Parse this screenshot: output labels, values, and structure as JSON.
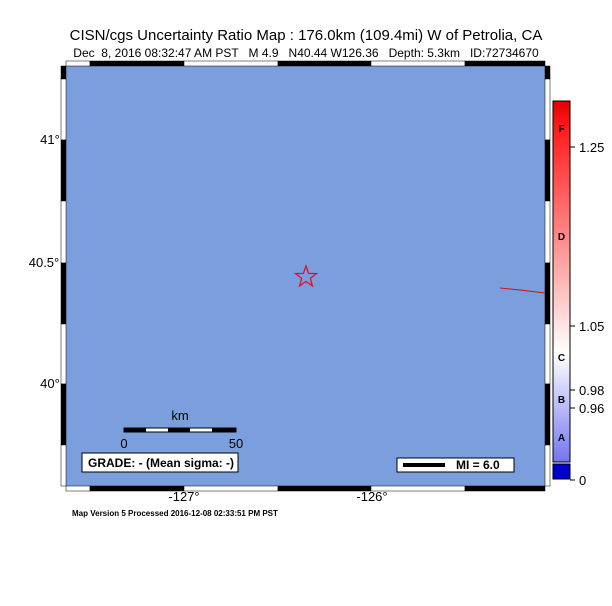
{
  "header": {
    "title": "CISN/cgs Uncertainty Ratio Map : 176.0km (109.4mi) W of Petrolia, CA",
    "subtitle": "Dec  8, 2016 08:32:47 AM PST   M 4.9   N40.44 W126.36   Depth: 5.3km   ID:72734670"
  },
  "map": {
    "lat_labels": [
      "41°",
      "40.5°",
      "40°"
    ],
    "lon_labels": [
      "-127°",
      "-126°"
    ],
    "scale": {
      "unit": "km",
      "ticks": [
        "0",
        "50"
      ]
    },
    "grade": "GRADE: - (Mean sigma: -)",
    "mi_legend": "MI = 6.0"
  },
  "colorbar": {
    "letters": [
      "F",
      "D",
      "C",
      "B",
      "A"
    ],
    "labels": [
      "1.25",
      "1.05",
      "0.98",
      "0.96",
      "0"
    ]
  },
  "footer": "Map Version 5 Processed 2016-12-08 02:33:51 PM PST"
}
